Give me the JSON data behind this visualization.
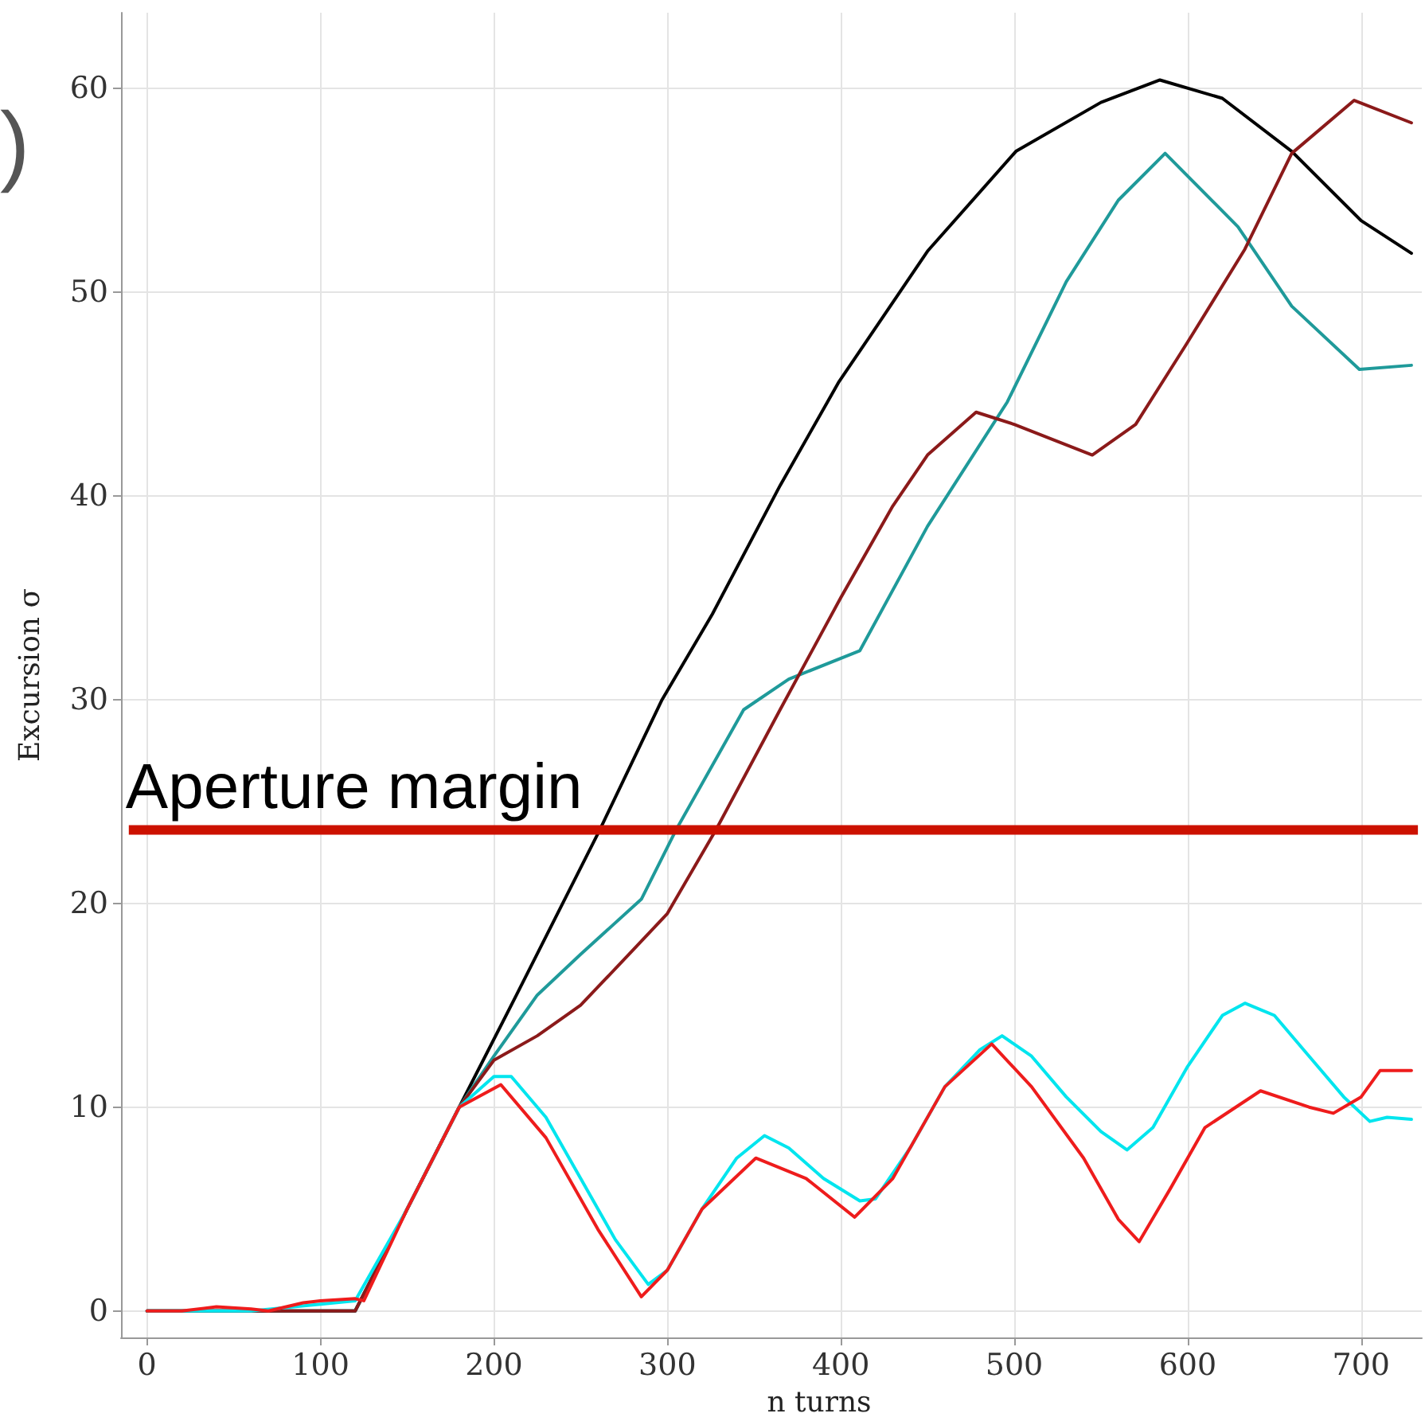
{
  "chart_data": {
    "type": "line",
    "xlabel": "n turns",
    "ylabel": "Excursion σ",
    "annotations": [
      ")"
    ],
    "xlim": [
      -15,
      735
    ],
    "ylim": [
      -1.3,
      63.7
    ],
    "xticks": [
      0,
      100,
      200,
      300,
      400,
      500,
      600,
      700
    ],
    "yticks": [
      0,
      10,
      20,
      30,
      40,
      50,
      60
    ],
    "grid": true,
    "marker": "none",
    "line_style": "solid",
    "ref_lines": [
      {
        "axis": "y",
        "value": 23.6,
        "label": "Aperture margin",
        "color": "#cc1100"
      }
    ],
    "series": [
      {
        "color": "#000000",
        "x": [
          0,
          60,
          120,
          150,
          180,
          213,
          261,
          297,
          326,
          365,
          399,
          450,
          501,
          550,
          584,
          620,
          660,
          700,
          729
        ],
        "values": [
          0,
          0,
          0,
          5,
          10,
          15.5,
          23.6,
          30,
          34.2,
          40.5,
          45.6,
          52,
          56.9,
          59.3,
          60.4,
          59.5,
          56.9,
          53.5,
          51.9
        ]
      },
      {
        "color": "#1f9a9a",
        "x": [
          0,
          60,
          120,
          150,
          180,
          200,
          225,
          250,
          285,
          305,
          344,
          370,
          411,
          450,
          496,
          530,
          560,
          587,
          629,
          660,
          699,
          729
        ],
        "values": [
          0,
          0,
          0,
          5,
          10,
          12.5,
          15.5,
          17.5,
          20.2,
          23.6,
          29.5,
          31,
          32.4,
          38.5,
          44.6,
          50.5,
          54.5,
          56.8,
          53.2,
          49.3,
          46.2,
          46.4
        ]
      },
      {
        "color": "#8b1a1a",
        "x": [
          0,
          60,
          120,
          150,
          180,
          200,
          225,
          250,
          279,
          300,
          328,
          365,
          400,
          430,
          450,
          478,
          500,
          545,
          570,
          599,
          633,
          660,
          696,
          729
        ],
        "values": [
          0,
          0,
          0,
          5,
          10,
          12.3,
          13.5,
          15,
          17.6,
          19.5,
          23.6,
          29.5,
          35,
          39.5,
          42,
          44.1,
          43.5,
          42,
          43.5,
          47.4,
          52.1,
          56.8,
          59.4,
          58.3
        ]
      },
      {
        "color": "#00e5ee",
        "x": [
          0,
          60,
          120,
          150,
          180,
          200,
          210,
          230,
          250,
          270,
          289,
          300,
          320,
          340,
          356,
          370,
          390,
          411,
          420,
          440,
          460,
          480,
          493,
          510,
          530,
          550,
          565,
          580,
          600,
          620,
          633,
          650,
          670,
          690,
          705,
          715,
          729
        ],
        "values": [
          0,
          0,
          0.5,
          5,
          10,
          11.5,
          11.5,
          9.5,
          6.5,
          3.5,
          1.3,
          2,
          5,
          7.5,
          8.6,
          8,
          6.5,
          5.4,
          5.5,
          8,
          11,
          12.8,
          13.5,
          12.5,
          10.5,
          8.8,
          7.9,
          9,
          12,
          14.5,
          15.1,
          14.5,
          12.5,
          10.5,
          9.3,
          9.5,
          9.4
        ]
      },
      {
        "color": "#ee1c1c",
        "x": [
          0,
          20,
          40,
          60,
          70,
          90,
          100,
          120,
          125,
          150,
          180,
          204,
          230,
          260,
          285,
          300,
          320,
          351,
          380,
          408,
          430,
          460,
          487,
          510,
          540,
          560,
          572,
          590,
          610,
          642,
          670,
          684,
          700,
          711,
          729
        ],
        "values": [
          0,
          0,
          0.2,
          0.1,
          0,
          0.4,
          0.5,
          0.6,
          0.5,
          5,
          10,
          11.1,
          8.5,
          4,
          0.7,
          2,
          5,
          7.5,
          6.5,
          4.6,
          6.5,
          11,
          13.1,
          11,
          7.5,
          4.5,
          3.4,
          6,
          9,
          10.8,
          10,
          9.7,
          10.5,
          11.8,
          11.8
        ]
      }
    ]
  }
}
